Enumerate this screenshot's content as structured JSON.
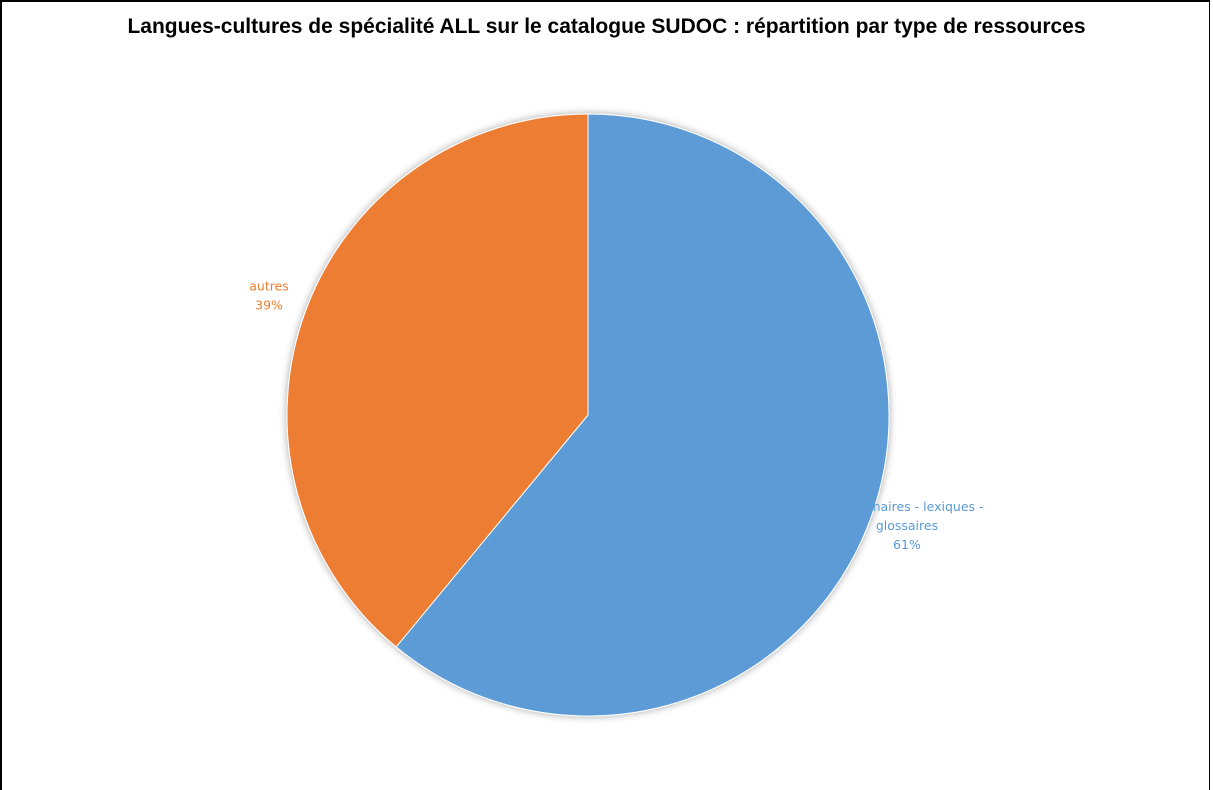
{
  "chart_data": {
    "type": "pie",
    "title": "Langues-cultures de spécialité ALL sur le catalogue SUDOC : répartition par type de ressources",
    "slices": [
      {
        "label_lines": [
          "dictionnaires - lexiques -",
          "glossaires"
        ],
        "value": 61,
        "value_label": "61%",
        "color": "#5b9bd5"
      },
      {
        "label_lines": [
          "autres"
        ],
        "value": 39,
        "value_label": "39%",
        "color": "#ed7d31"
      }
    ],
    "legend": "none",
    "data_labels": "outside"
  }
}
